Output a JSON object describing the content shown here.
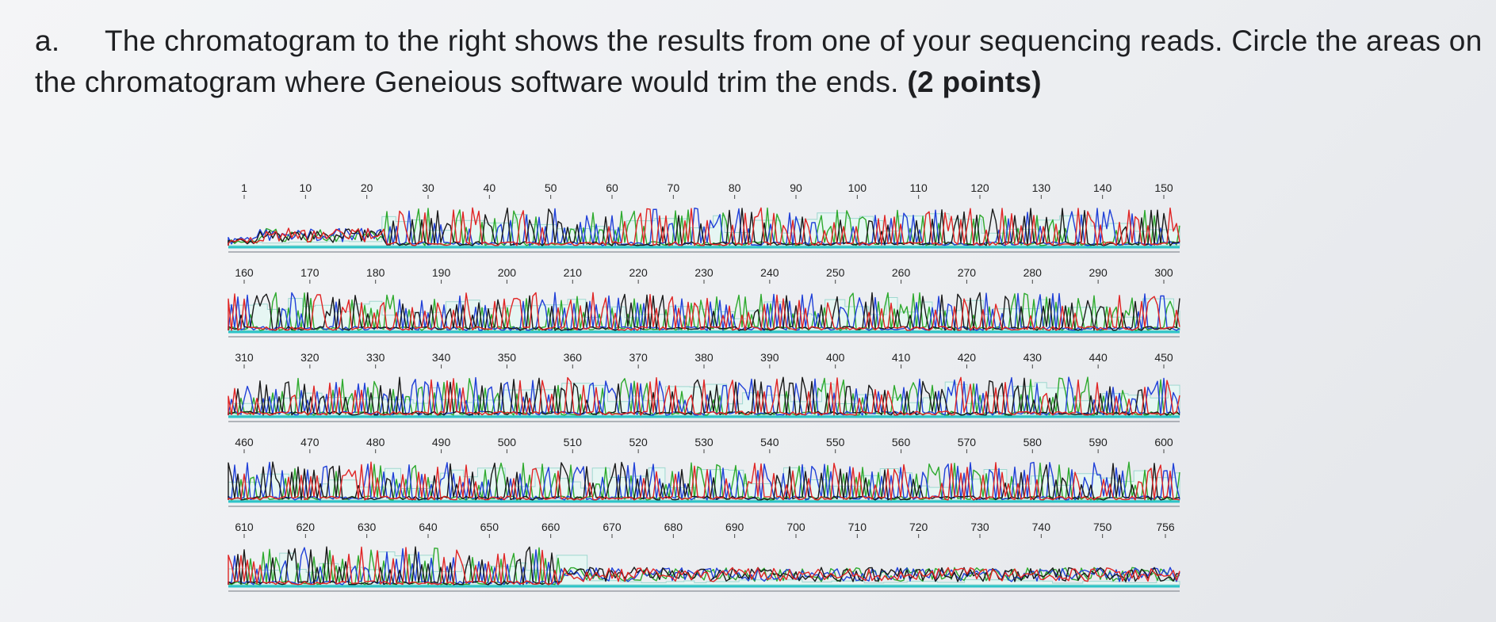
{
  "question": {
    "marker": "a.",
    "text": "The chromatogram to the right shows the results from one of your sequencing reads. Circle the areas on the chromatogram where Geneious software would trim the ends.",
    "points": "(2 points)"
  },
  "chromatogram": {
    "rows": [
      {
        "ticks": [
          "1",
          "10",
          "20",
          "30",
          "40",
          "50",
          "60",
          "70",
          "80",
          "90",
          "100",
          "110",
          "120",
          "130",
          "140",
          "150"
        ]
      },
      {
        "ticks": [
          "160",
          "170",
          "180",
          "190",
          "200",
          "210",
          "220",
          "230",
          "240",
          "250",
          "260",
          "270",
          "280",
          "290",
          "300"
        ]
      },
      {
        "ticks": [
          "310",
          "320",
          "330",
          "340",
          "350",
          "360",
          "370",
          "380",
          "390",
          "400",
          "410",
          "420",
          "430",
          "440",
          "450"
        ]
      },
      {
        "ticks": [
          "460",
          "470",
          "480",
          "490",
          "500",
          "510",
          "520",
          "530",
          "540",
          "550",
          "560",
          "570",
          "580",
          "590",
          "600"
        ]
      },
      {
        "ticks": [
          "610",
          "620",
          "630",
          "640",
          "650",
          "660",
          "670",
          "680",
          "690",
          "700",
          "710",
          "720",
          "730",
          "740",
          "750",
          "756"
        ]
      }
    ],
    "colors": {
      "A": "#2eaa2e",
      "C": "#2040d8",
      "G": "#1a1a1a",
      "T": "#e02525",
      "N": "#e0b400"
    },
    "quality_color": "#9fd8d0",
    "baseline_color": "#2ec4c8"
  }
}
